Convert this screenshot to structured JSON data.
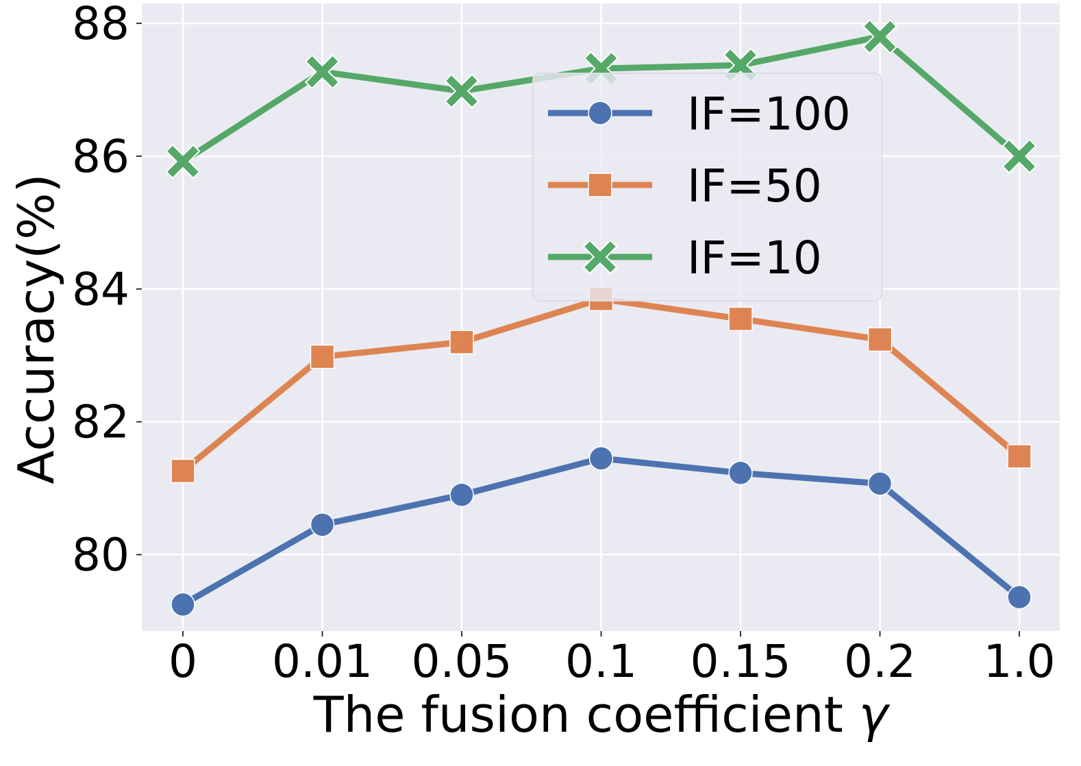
{
  "chart_data": {
    "type": "line",
    "title": "",
    "xlabel": "The fusion coefficient",
    "xlabel_symbol": "γ",
    "ylabel": "Accuracy(%)",
    "categories": [
      "0",
      "0.01",
      "0.05",
      "0.1",
      "0.15",
      "0.2",
      "1.0"
    ],
    "ylim": [
      78.85,
      88.3
    ],
    "yticks": [
      80,
      82,
      84,
      86,
      88
    ],
    "grid": true,
    "legend_position": "top-right",
    "series": [
      {
        "name": "IF=100",
        "marker": "circle",
        "color": "#4c72b0",
        "values": [
          79.25,
          80.45,
          80.9,
          81.45,
          81.23,
          81.07,
          79.36
        ]
      },
      {
        "name": "IF=50",
        "marker": "square",
        "color": "#dd8452",
        "values": [
          81.26,
          82.98,
          83.2,
          83.85,
          83.55,
          83.24,
          81.48
        ]
      },
      {
        "name": "IF=10",
        "marker": "x",
        "color": "#55a868",
        "values": [
          85.92,
          87.27,
          86.98,
          87.32,
          87.37,
          87.8,
          86.0
        ]
      }
    ]
  }
}
